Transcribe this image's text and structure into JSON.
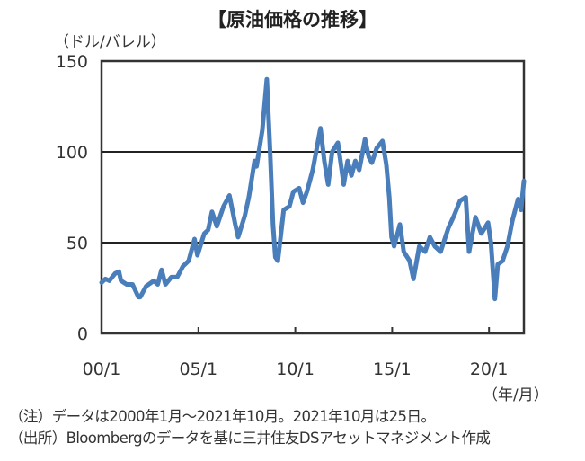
{
  "chart_data": {
    "type": "line",
    "title": "【原油価格の推移】",
    "ylabel": "（ドル/バレル）",
    "xlabel": "（年/月）",
    "ylim": [
      0,
      150
    ],
    "xlim": [
      2000.0,
      2021.8
    ],
    "yticks": [
      0,
      50,
      100,
      150
    ],
    "xticks": [
      {
        "label": "00/1",
        "x": 2000
      },
      {
        "label": "05/1",
        "x": 2005
      },
      {
        "label": "10/1",
        "x": 2010
      },
      {
        "label": "15/1",
        "x": 2015
      },
      {
        "label": "20/1",
        "x": 2020
      }
    ],
    "grid": "horizontal at 50 and 100",
    "color": "#4a7ebb",
    "series": [
      {
        "name": "原油価格",
        "points": [
          [
            2000.0,
            28
          ],
          [
            2000.2,
            30
          ],
          [
            2000.4,
            29
          ],
          [
            2000.7,
            33
          ],
          [
            2000.9,
            34
          ],
          [
            2001.0,
            29
          ],
          [
            2001.3,
            27
          ],
          [
            2001.6,
            27
          ],
          [
            2001.9,
            20
          ],
          [
            2002.0,
            20
          ],
          [
            2002.3,
            26
          ],
          [
            2002.7,
            29
          ],
          [
            2002.9,
            27
          ],
          [
            2003.1,
            35
          ],
          [
            2003.3,
            27
          ],
          [
            2003.6,
            31
          ],
          [
            2003.9,
            31
          ],
          [
            2004.2,
            37
          ],
          [
            2004.5,
            40
          ],
          [
            2004.8,
            52
          ],
          [
            2004.95,
            43
          ],
          [
            2005.3,
            55
          ],
          [
            2005.5,
            57
          ],
          [
            2005.7,
            67
          ],
          [
            2005.95,
            59
          ],
          [
            2006.3,
            70
          ],
          [
            2006.6,
            76
          ],
          [
            2006.9,
            60
          ],
          [
            2007.05,
            53
          ],
          [
            2007.4,
            65
          ],
          [
            2007.6,
            75
          ],
          [
            2007.9,
            95
          ],
          [
            2008.0,
            92
          ],
          [
            2008.3,
            112
          ],
          [
            2008.53,
            140
          ],
          [
            2008.7,
            100
          ],
          [
            2008.85,
            60
          ],
          [
            2008.97,
            42
          ],
          [
            2009.1,
            40
          ],
          [
            2009.4,
            68
          ],
          [
            2009.7,
            70
          ],
          [
            2009.9,
            78
          ],
          [
            2010.2,
            80
          ],
          [
            2010.4,
            72
          ],
          [
            2010.6,
            78
          ],
          [
            2010.9,
            90
          ],
          [
            2011.3,
            113
          ],
          [
            2011.5,
            95
          ],
          [
            2011.7,
            82
          ],
          [
            2011.9,
            100
          ],
          [
            2012.2,
            105
          ],
          [
            2012.5,
            82
          ],
          [
            2012.7,
            95
          ],
          [
            2012.9,
            87
          ],
          [
            2013.1,
            95
          ],
          [
            2013.3,
            90
          ],
          [
            2013.6,
            107
          ],
          [
            2013.8,
            97
          ],
          [
            2013.95,
            94
          ],
          [
            2014.2,
            102
          ],
          [
            2014.5,
            106
          ],
          [
            2014.7,
            93
          ],
          [
            2014.85,
            75
          ],
          [
            2014.97,
            53
          ],
          [
            2015.1,
            48
          ],
          [
            2015.4,
            60
          ],
          [
            2015.6,
            45
          ],
          [
            2015.9,
            40
          ],
          [
            2016.1,
            30
          ],
          [
            2016.4,
            48
          ],
          [
            2016.7,
            45
          ],
          [
            2016.95,
            53
          ],
          [
            2017.2,
            48
          ],
          [
            2017.5,
            45
          ],
          [
            2017.9,
            58
          ],
          [
            2018.2,
            65
          ],
          [
            2018.5,
            73
          ],
          [
            2018.8,
            75
          ],
          [
            2018.97,
            45
          ],
          [
            2019.3,
            64
          ],
          [
            2019.6,
            55
          ],
          [
            2019.95,
            61
          ],
          [
            2020.1,
            50
          ],
          [
            2020.3,
            19
          ],
          [
            2020.45,
            38
          ],
          [
            2020.7,
            40
          ],
          [
            2020.95,
            48
          ],
          [
            2021.2,
            62
          ],
          [
            2021.5,
            74
          ],
          [
            2021.65,
            68
          ],
          [
            2021.8,
            84
          ]
        ]
      }
    ]
  },
  "notes": [
    "（注）データは2000年1月～2021年10月。2021年10月は25日。",
    "（出所）Bloombergのデータを基に三井住友DSアセットマネジメント作成"
  ]
}
